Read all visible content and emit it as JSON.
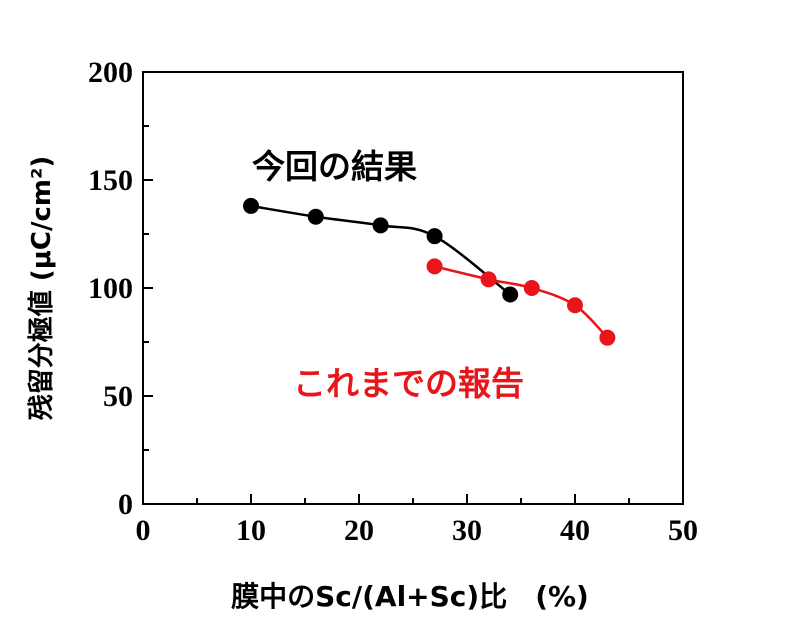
{
  "chart_data": {
    "type": "line",
    "xlabel": "膜中のSc/(Al+Sc)比　(%)",
    "ylabel": "残留分極値 (μC/cm²)",
    "xlim": [
      0,
      50
    ],
    "ylim": [
      0,
      200
    ],
    "x_ticks": [
      "0",
      "10",
      "20",
      "30",
      "40",
      "50"
    ],
    "y_ticks": [
      "0",
      "50",
      "100",
      "150",
      "200"
    ],
    "grid": false,
    "series": [
      {
        "name": "今回の結果",
        "color": "#000000",
        "points": [
          {
            "x": 10,
            "y": 138
          },
          {
            "x": 16,
            "y": 133
          },
          {
            "x": 22,
            "y": 129
          },
          {
            "x": 27,
            "y": 124
          },
          {
            "x": 34,
            "y": 97
          }
        ]
      },
      {
        "name": "これまでの報告",
        "color": "#e8161b",
        "points": [
          {
            "x": 27,
            "y": 110
          },
          {
            "x": 32,
            "y": 104
          },
          {
            "x": 36,
            "y": 100
          },
          {
            "x": 40,
            "y": 92
          },
          {
            "x": 43,
            "y": 77
          }
        ]
      }
    ]
  }
}
